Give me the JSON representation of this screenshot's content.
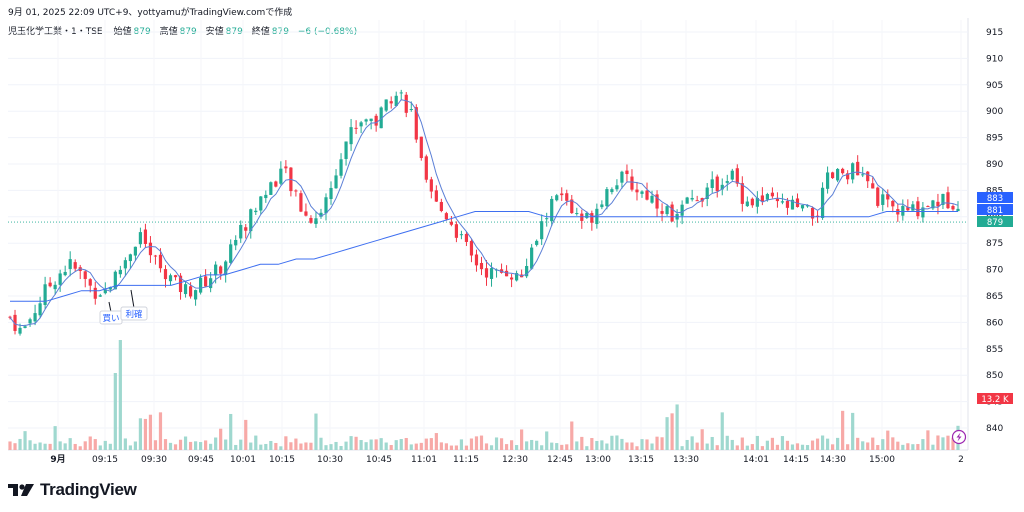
{
  "header": {
    "title": "9月 01, 2025 22:09 UTC+9、yottyamuがTradingView.comで作成"
  },
  "legend": {
    "symbol": "児玉化学工業・1・TSE",
    "open_label": "始値",
    "open": "879",
    "high_label": "高値",
    "high": "879",
    "low_label": "安値",
    "low": "879",
    "close_label": "終値",
    "close": "879",
    "change": "−6 (−0.68%)"
  },
  "price_badges": {
    "upper": "883",
    "middle": "881",
    "last": "879",
    "volume": "13.2 K"
  },
  "annotations": {
    "buy": "買い",
    "take_profit": "利確"
  },
  "logo": {
    "text": "TradingView"
  },
  "colors": {
    "up": "#22ab94",
    "down": "#f23645",
    "ma_short": "#5b7fd6",
    "ma_long": "#3e6ff0",
    "badge_blue": "#2962ff",
    "badge_green": "#22ab94",
    "badge_red": "#f23645"
  },
  "chart_data": {
    "type": "candlestick",
    "y_ticks": [
      840,
      845,
      850,
      855,
      860,
      865,
      870,
      875,
      880,
      885,
      890,
      895,
      900,
      905,
      910,
      915
    ],
    "x_ticks": [
      "9月",
      "09:15",
      "09:30",
      "09:45",
      "10:01",
      "10:15",
      "10:30",
      "10:45",
      "11:01",
      "11:15",
      "12:30",
      "12:45",
      "13:00",
      "13:15",
      "13:30",
      "14:01",
      "14:15",
      "14:30",
      "15:00",
      "2"
    ],
    "ylim": [
      836,
      917
    ],
    "close_path": [
      861,
      858,
      862,
      866,
      869,
      871,
      869,
      866,
      866,
      869,
      873,
      877,
      872,
      870,
      867,
      866,
      867,
      869,
      871,
      876,
      879,
      883,
      886,
      889,
      884,
      880,
      880,
      885,
      893,
      897,
      899,
      898,
      903,
      903,
      899,
      886,
      882,
      880,
      876,
      872,
      870,
      869,
      870,
      868,
      873,
      879,
      884,
      883,
      879,
      880,
      884,
      887,
      887,
      885,
      884,
      882,
      880,
      882,
      884,
      885,
      887,
      888,
      883,
      883,
      883,
      882,
      882,
      881,
      880,
      887,
      888,
      889,
      887,
      884,
      882,
      881,
      881,
      882,
      883,
      883,
      883
    ],
    "ma_long_path": [
      864,
      864,
      864,
      865,
      866,
      866,
      867,
      867,
      867,
      867,
      868,
      869,
      869,
      870,
      871,
      871,
      872,
      872,
      873,
      874,
      875,
      876,
      877,
      878,
      879,
      880,
      881,
      881,
      881,
      881,
      880,
      880,
      880,
      880,
      880,
      880,
      880,
      880,
      880,
      880,
      880,
      880,
      880,
      880,
      880,
      880,
      880,
      880,
      880,
      881,
      881,
      881,
      881,
      881
    ],
    "volume_max_k": 60,
    "volume_last_k": 13.2
  }
}
